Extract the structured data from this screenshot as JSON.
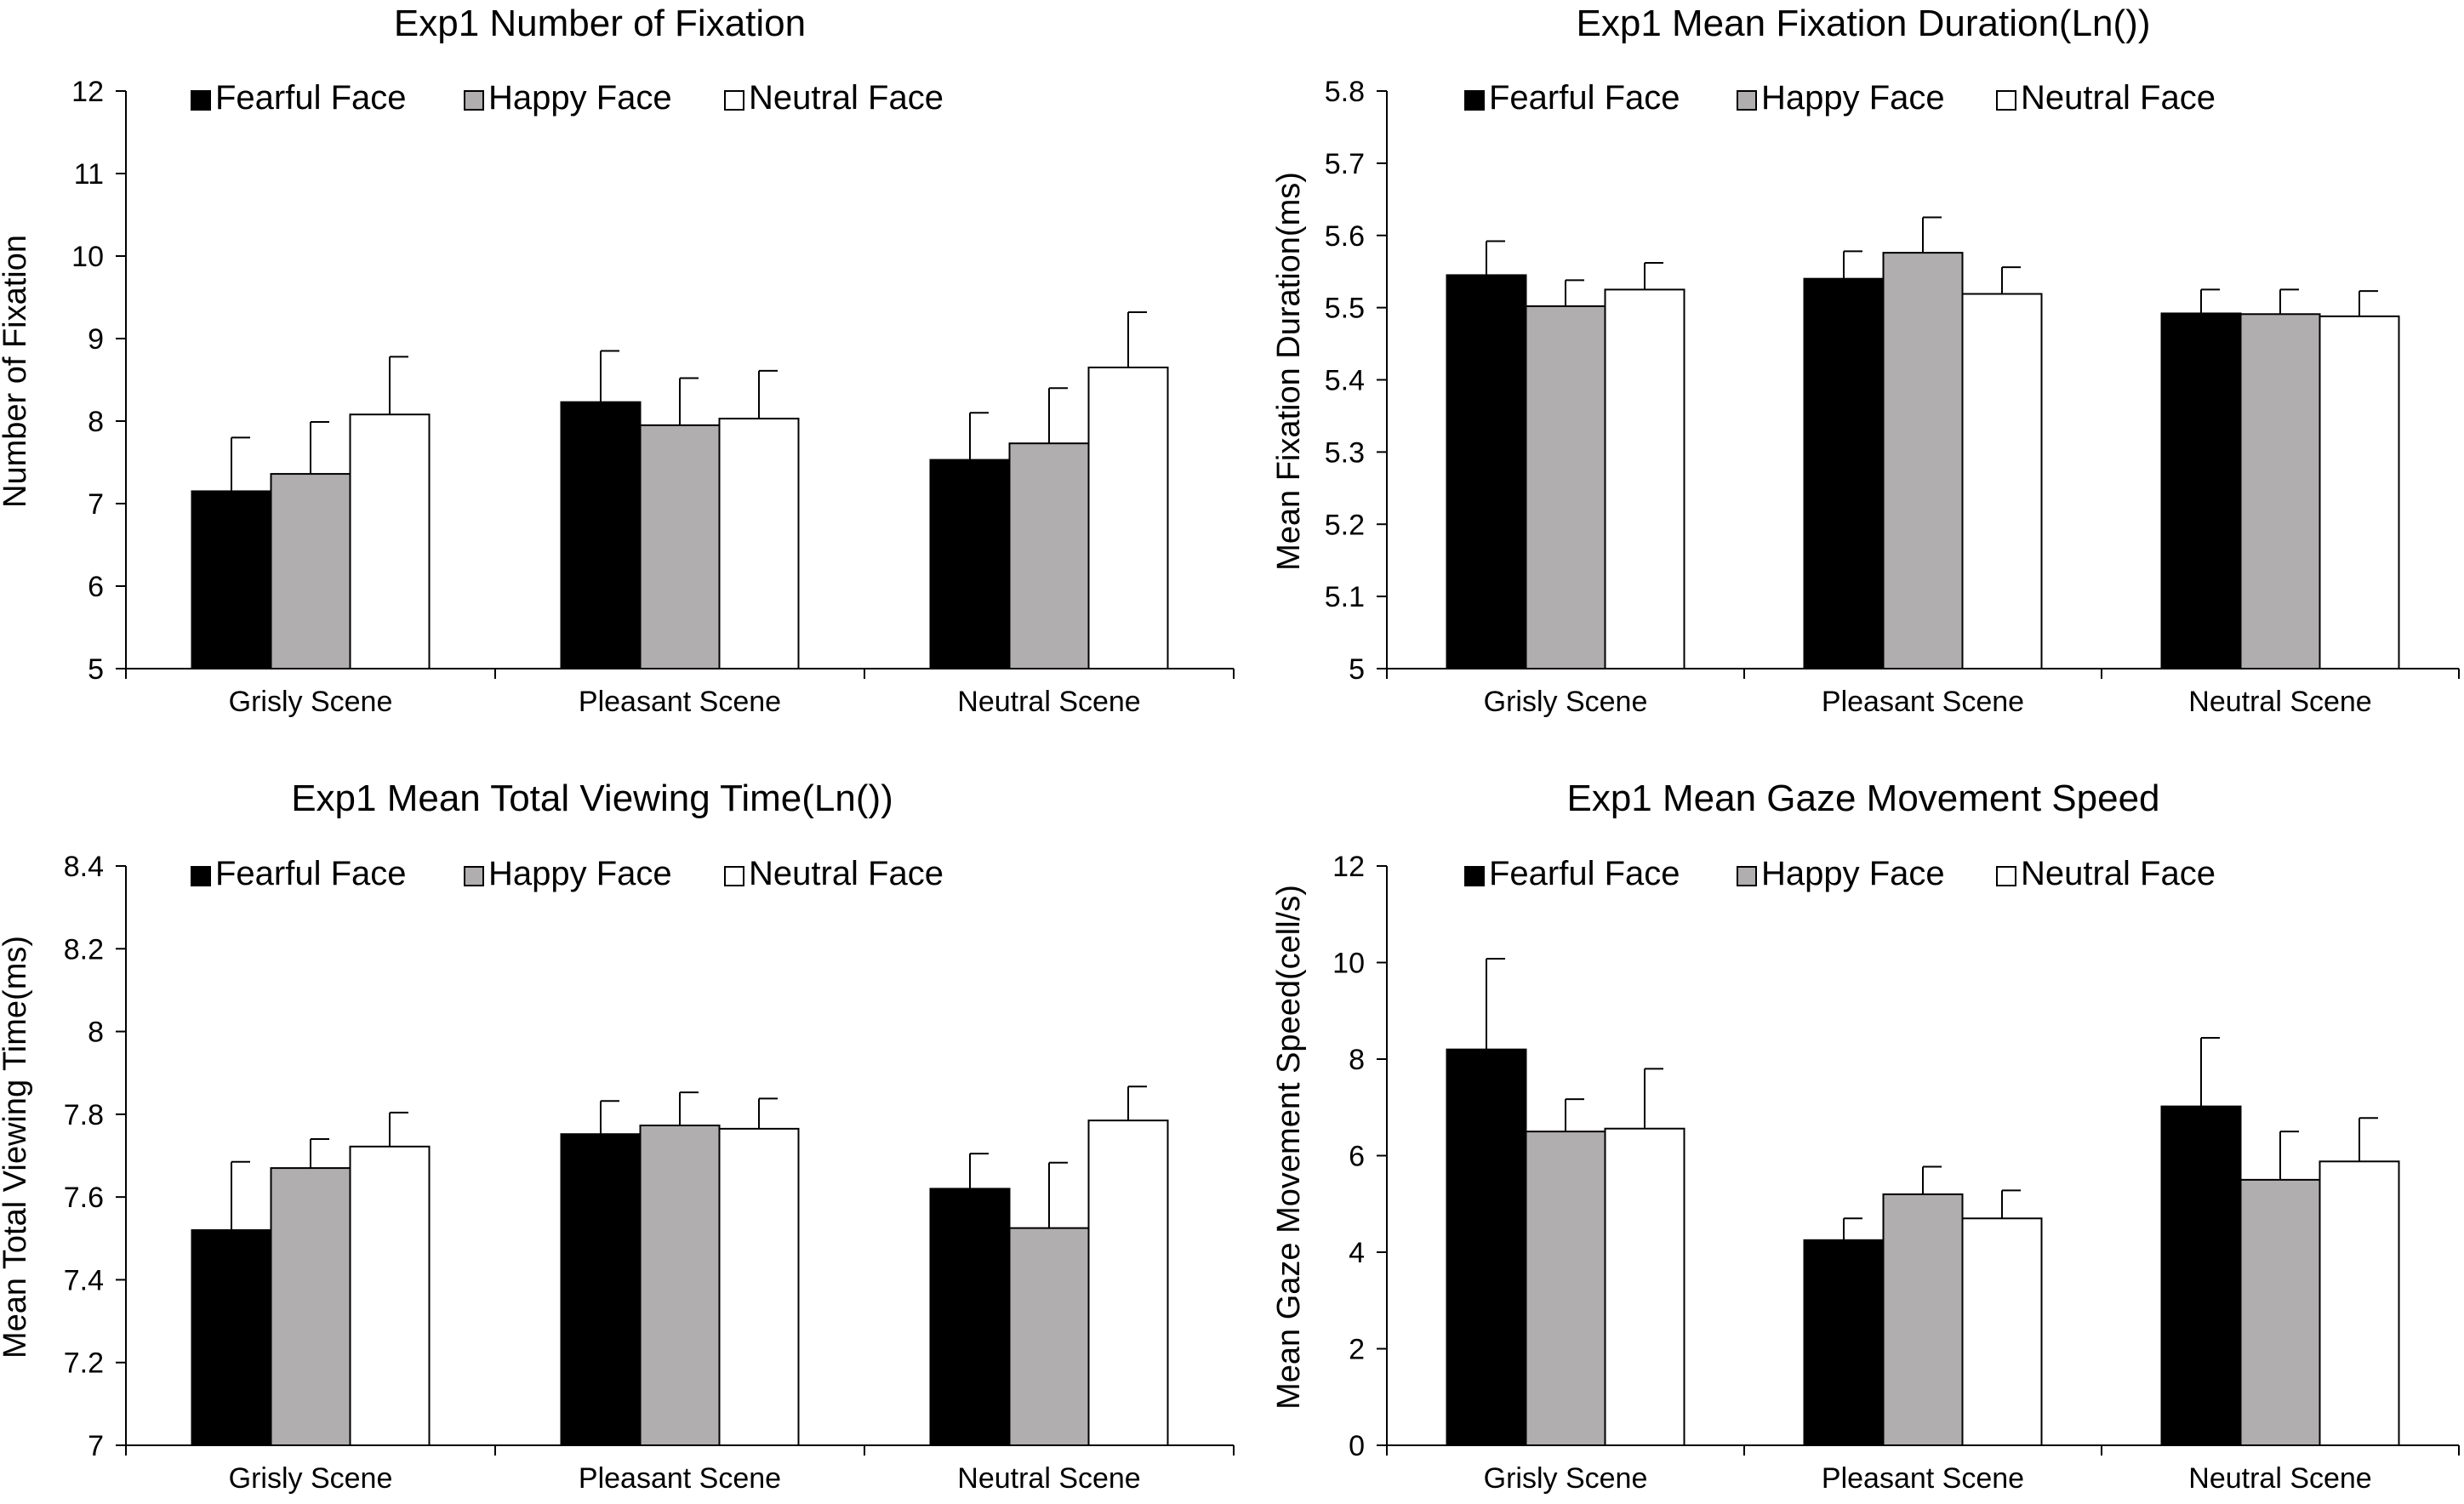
{
  "colors": {
    "fearful": "#000000",
    "happy": "#b0aeaf",
    "neutral": "#ffffff",
    "axis": "#000000"
  },
  "chart_data": [
    {
      "type": "bar",
      "title": "Exp1 Number of Fixation",
      "xlabel": "",
      "ylabel": "Number of Fixation",
      "ylim": [
        5,
        12
      ],
      "yticks": [
        5,
        6,
        7,
        8,
        9,
        10,
        11,
        12
      ],
      "ytick_labels": [
        "5",
        "6",
        "7",
        "8",
        "9",
        "10",
        "11",
        "12"
      ],
      "categories": [
        "Grisly Scene",
        "Pleasant Scene",
        "Neutral Scene"
      ],
      "legend_position": "top",
      "series": [
        {
          "name": "Fearful Face",
          "color_key": "fearful",
          "values": [
            7.15,
            8.23,
            7.53
          ],
          "errors": [
            0.65,
            0.62,
            0.57
          ]
        },
        {
          "name": "Happy Face",
          "color_key": "happy",
          "values": [
            7.36,
            7.95,
            7.73
          ],
          "errors": [
            0.63,
            0.57,
            0.67
          ]
        },
        {
          "name": "Neutral Face",
          "color_key": "neutral",
          "values": [
            8.08,
            8.03,
            8.65
          ],
          "errors": [
            0.7,
            0.58,
            0.67
          ]
        }
      ]
    },
    {
      "type": "bar",
      "title": "Exp1 Mean Fixation Duration(Ln())",
      "xlabel": "",
      "ylabel": "Mean Fixation Duration(ms)",
      "ylim": [
        5,
        5.8
      ],
      "yticks": [
        5,
        5.1,
        5.2,
        5.3,
        5.4,
        5.5,
        5.6,
        5.7,
        5.8
      ],
      "ytick_labels": [
        "5",
        "5.1",
        "5.2",
        "5.3",
        "5.4",
        "5.5",
        "5.6",
        "5.7",
        "5.8"
      ],
      "categories": [
        "Grisly Scene",
        "Pleasant Scene",
        "Neutral Scene"
      ],
      "legend_position": "top",
      "series": [
        {
          "name": "Fearful Face",
          "color_key": "fearful",
          "values": [
            5.545,
            5.54,
            5.492
          ],
          "errors": [
            0.047,
            0.038,
            0.033
          ]
        },
        {
          "name": "Happy Face",
          "color_key": "happy",
          "values": [
            5.502,
            5.576,
            5.491
          ],
          "errors": [
            0.036,
            0.049,
            0.034
          ]
        },
        {
          "name": "Neutral Face",
          "color_key": "neutral",
          "values": [
            5.525,
            5.519,
            5.488
          ],
          "errors": [
            0.037,
            0.037,
            0.035
          ]
        }
      ]
    },
    {
      "type": "bar",
      "title": "Exp1 Mean Total Viewing Time(Ln())",
      "xlabel": "",
      "ylabel": "Mean Total  Viewing Time(ms)",
      "ylim": [
        7,
        8.4
      ],
      "yticks": [
        7,
        7.2,
        7.4,
        7.6,
        7.8,
        8,
        8.2,
        8.4
      ],
      "ytick_labels": [
        "7",
        "7.2",
        "7.4",
        "7.6",
        "7.8",
        "8",
        "8.2",
        "8.4"
      ],
      "categories": [
        "Grisly Scene",
        "Pleasant Scene",
        "Neutral Scene"
      ],
      "legend_position": "top",
      "series": [
        {
          "name": "Fearful Face",
          "color_key": "fearful",
          "values": [
            7.52,
            7.752,
            7.62
          ],
          "errors": [
            0.165,
            0.08,
            0.085
          ]
        },
        {
          "name": "Happy Face",
          "color_key": "happy",
          "values": [
            7.67,
            7.773,
            7.525
          ],
          "errors": [
            0.07,
            0.08,
            0.158
          ]
        },
        {
          "name": "Neutral Face",
          "color_key": "neutral",
          "values": [
            7.722,
            7.765,
            7.785
          ],
          "errors": [
            0.082,
            0.073,
            0.082
          ]
        }
      ]
    },
    {
      "type": "bar",
      "title": "Exp1 Mean Gaze Movement Speed",
      "xlabel": "",
      "ylabel": "Mean Gaze Movement Speed(cell/s)",
      "ylim": [
        0,
        12
      ],
      "yticks": [
        0,
        2,
        4,
        6,
        8,
        10,
        12
      ],
      "ytick_labels": [
        "0",
        "2",
        "4",
        "6",
        "8",
        "10",
        "12"
      ],
      "categories": [
        "Grisly Scene",
        "Pleasant Scene",
        "Neutral Scene"
      ],
      "legend_position": "top",
      "series": [
        {
          "name": "Fearful Face",
          "color_key": "fearful",
          "values": [
            8.2,
            4.25,
            7.02
          ],
          "errors": [
            1.88,
            0.45,
            1.42
          ]
        },
        {
          "name": "Happy Face",
          "color_key": "happy",
          "values": [
            6.5,
            5.2,
            5.5
          ],
          "errors": [
            0.67,
            0.57,
            1.0
          ]
        },
        {
          "name": "Neutral Face",
          "color_key": "neutral",
          "values": [
            6.56,
            4.7,
            5.88
          ],
          "errors": [
            1.24,
            0.58,
            0.9
          ]
        }
      ]
    }
  ]
}
